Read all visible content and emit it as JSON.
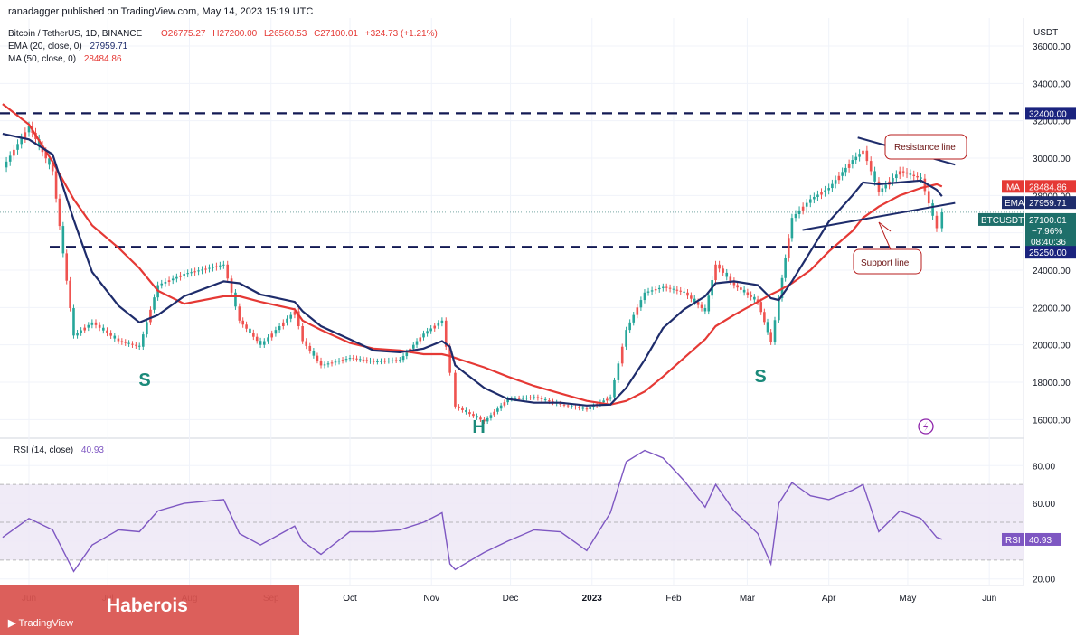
{
  "header": {
    "publisher": "ranadagger published on TradingView.com, May 14, 2023 15:19 UTC",
    "symbol": "Bitcoin / TetherUS, 1D, BINANCE",
    "ohlc": {
      "o": "O26775.27",
      "h": "H27200.00",
      "l": "L26560.53",
      "c": "C27100.01",
      "chg": "+324.73 (+1.21%)"
    },
    "ema_label": "EMA (20, close, 0)",
    "ema_value": "27959.71",
    "ma_label": "MA (50, close, 0)",
    "ma_value": "28484.86"
  },
  "price_axis": {
    "currency": "USDT",
    "ticks": [
      "36000.00",
      "34000.00",
      "32000.00",
      "30000.00",
      "28000.00",
      "26000.00",
      "24000.00",
      "22000.00",
      "20000.00",
      "18000.00",
      "16000.00"
    ],
    "tags": {
      "resistance": "32400.00",
      "ma_name": "MA",
      "ma": "28484.86",
      "ema_name": "EMA",
      "ema": "27959.71",
      "symbol": "BTCUSDT",
      "price": "27100.01",
      "change": "−7.96%",
      "countdown": "08:40:36",
      "support": "25250.00"
    }
  },
  "rsi": {
    "label": "RSI (14, close)",
    "value_label": "40.93",
    "tag_name": "RSI",
    "tag_value": "40.93",
    "ticks": [
      "80.00",
      "60.00",
      "40.00",
      "20.00"
    ]
  },
  "time_axis": [
    "Jun",
    "Jul",
    "Aug",
    "Sep",
    "Oct",
    "Nov",
    "Dec",
    "2023",
    "Feb",
    "Mar",
    "Apr",
    "May",
    "Jun"
  ],
  "annotations": {
    "left_shoulder": "S",
    "head": "H",
    "right_shoulder": "S",
    "resistance_callout": "Resistance line",
    "support_callout": "Support line"
  },
  "brand": {
    "name": "Haberois",
    "logo_text": "TradingView"
  },
  "colors": {
    "bullish": "#26a69a",
    "bearish": "#ef5350",
    "ema": "#1e2c6b",
    "ma": "#e53935",
    "rsi": "#7e57c2",
    "rsi_band": "#ede7f6",
    "dashed_level": "#131a54",
    "brand": "#d9534f",
    "price_tag": "#1e6f6a"
  },
  "chart_data": {
    "type": "line",
    "title": "Bitcoin / TetherUS, 1D, BINANCE",
    "interval": "1D",
    "x": [
      "2022-05-22",
      "2022-06-01",
      "2022-06-10",
      "2022-06-18",
      "2022-06-25",
      "2022-07-05",
      "2022-07-13",
      "2022-07-20",
      "2022-07-30",
      "2022-08-14",
      "2022-08-20",
      "2022-08-28",
      "2022-09-10",
      "2022-09-13",
      "2022-09-20",
      "2022-10-01",
      "2022-10-10",
      "2022-10-20",
      "2022-10-29",
      "2022-11-05",
      "2022-11-08",
      "2022-11-10",
      "2022-11-21",
      "2022-11-30",
      "2022-12-10",
      "2022-12-20",
      "2022-12-30",
      "2023-01-08",
      "2023-01-14",
      "2023-01-21",
      "2023-01-28",
      "2023-02-05",
      "2023-02-13",
      "2023-02-17",
      "2023-02-24",
      "2023-03-05",
      "2023-03-10",
      "2023-03-13",
      "2023-03-18",
      "2023-03-25",
      "2023-04-01",
      "2023-04-10",
      "2023-04-14",
      "2023-04-20",
      "2023-04-28",
      "2023-05-06",
      "2023-05-12",
      "2023-05-14"
    ],
    "series": [
      {
        "name": "BTCUSDT close",
        "values": [
          29500,
          31700,
          29300,
          20500,
          21200,
          20200,
          19900,
          23200,
          23800,
          24300,
          21300,
          20000,
          21800,
          20200,
          18900,
          19300,
          19100,
          19200,
          20600,
          21300,
          18500,
          16700,
          15900,
          17100,
          17200,
          16800,
          16550,
          17200,
          20800,
          22800,
          23100,
          22800,
          21800,
          24300,
          23200,
          22300,
          20150,
          22500,
          26800,
          27800,
          28400,
          29900,
          30400,
          28200,
          29300,
          28900,
          26250,
          27100
        ]
      },
      {
        "name": "MA (50, close, 0)",
        "values": [
          32900,
          31800,
          29800,
          27800,
          26400,
          25200,
          24100,
          22900,
          22200,
          22600,
          22600,
          22300,
          21900,
          21300,
          20800,
          20100,
          19800,
          19700,
          19500,
          19500,
          19400,
          19300,
          18800,
          18300,
          17800,
          17400,
          17000,
          16800,
          17000,
          17500,
          18300,
          19300,
          20300,
          21000,
          21600,
          22300,
          22700,
          22900,
          23300,
          24000,
          25000,
          26100,
          26800,
          27400,
          28000,
          28400,
          28600,
          28480
        ]
      },
      {
        "name": "EMA (20, close, 0)",
        "values": [
          31300,
          31000,
          30200,
          26700,
          23900,
          22100,
          21200,
          21600,
          22600,
          23400,
          23300,
          22700,
          22300,
          21800,
          21000,
          20300,
          19700,
          19600,
          19800,
          20200,
          19900,
          18900,
          17700,
          17100,
          16900,
          16900,
          16750,
          16800,
          17700,
          19200,
          20900,
          21900,
          22600,
          23300,
          23400,
          23200,
          22500,
          22400,
          23400,
          25000,
          26600,
          28000,
          28700,
          28600,
          28700,
          28800,
          28300,
          27960
        ]
      },
      {
        "name": "RSI (14, close)",
        "values": [
          42,
          52,
          46,
          24,
          38,
          46,
          45,
          56,
          60,
          62,
          44,
          38,
          48,
          40,
          33,
          45,
          45,
          46,
          50,
          55,
          28,
          25,
          34,
          40,
          46,
          45,
          35,
          55,
          82,
          88,
          84,
          72,
          58,
          70,
          56,
          44,
          28,
          60,
          71,
          64,
          62,
          67,
          70,
          45,
          56,
          52,
          42,
          41
        ]
      }
    ],
    "levels": {
      "resistance": 32400,
      "support": 25250
    },
    "ylim": [
      15000,
      37500
    ],
    "rsi_ylim": [
      17,
      94
    ],
    "rsi_band": [
      30,
      70
    ],
    "xlim": [
      "2022-05-21",
      "2023-06-14"
    ],
    "grid": true,
    "log_scale": false,
    "pattern_labels": [
      {
        "text": "S",
        "date": "2022-07-15",
        "price": 17800
      },
      {
        "text": "H",
        "date": "2022-11-19",
        "price": 15300
      },
      {
        "text": "S",
        "date": "2023-03-06",
        "price": 18000
      }
    ]
  }
}
